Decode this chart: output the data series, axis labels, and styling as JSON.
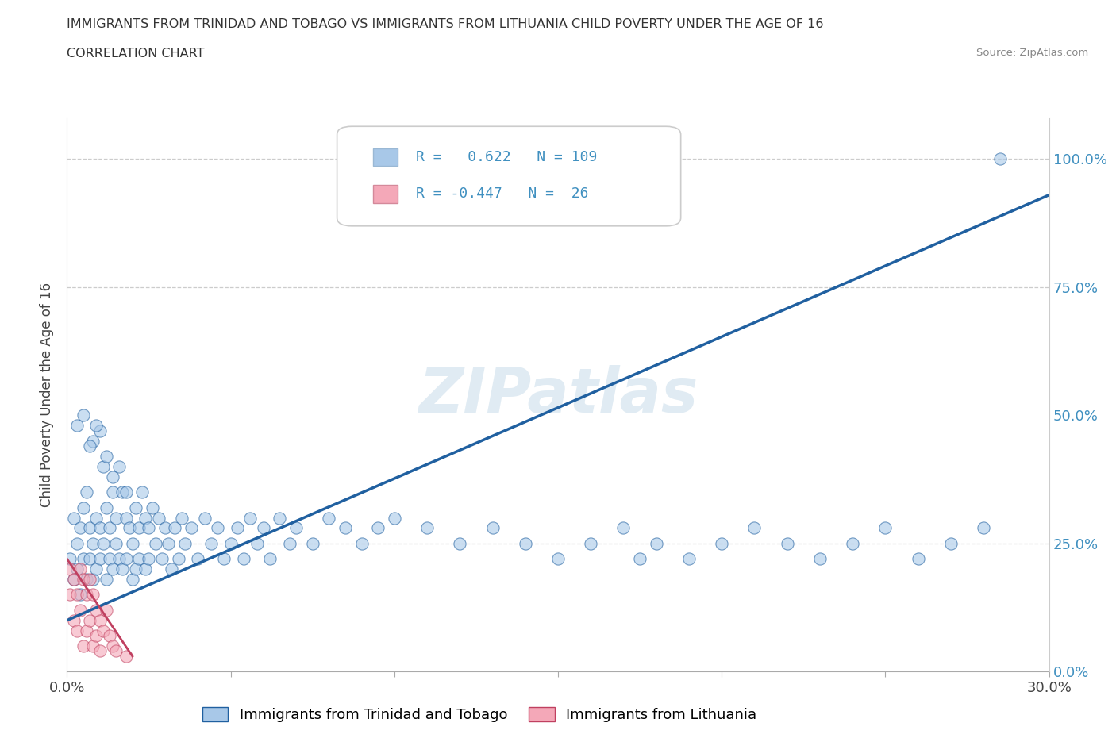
{
  "title": "IMMIGRANTS FROM TRINIDAD AND TOBAGO VS IMMIGRANTS FROM LITHUANIA CHILD POVERTY UNDER THE AGE OF 16",
  "subtitle": "CORRELATION CHART",
  "source": "Source: ZipAtlas.com",
  "ylabel": "Child Poverty Under the Age of 16",
  "legend_tt": "Immigrants from Trinidad and Tobago",
  "legend_lith": "Immigrants from Lithuania",
  "color_tt": "#a8c8e8",
  "color_lith": "#f4a8b8",
  "color_tt_line": "#2060a0",
  "color_lith_line": "#c04060",
  "R_tt": 0.622,
  "N_tt": 109,
  "R_lith": -0.447,
  "N_lith": 26,
  "xlim": [
    0.0,
    0.3
  ],
  "ylim": [
    0.0,
    1.08
  ],
  "yticks": [
    0.0,
    0.25,
    0.5,
    0.75,
    1.0
  ],
  "yticklabels_right": [
    "0.0%",
    "25.0%",
    "50.0%",
    "75.0%",
    "100.0%"
  ],
  "xtick_positions": [
    0.0,
    0.05,
    0.1,
    0.15,
    0.2,
    0.25,
    0.3
  ],
  "xtick_labels": [
    "0.0%",
    "",
    "",
    "",
    "",
    "",
    "30.0%"
  ],
  "watermark": "ZIPatlas",
  "background_color": "#ffffff",
  "tt_scatter": [
    [
      0.001,
      0.22
    ],
    [
      0.002,
      0.18
    ],
    [
      0.002,
      0.3
    ],
    [
      0.003,
      0.25
    ],
    [
      0.003,
      0.2
    ],
    [
      0.004,
      0.28
    ],
    [
      0.004,
      0.15
    ],
    [
      0.005,
      0.32
    ],
    [
      0.005,
      0.22
    ],
    [
      0.006,
      0.18
    ],
    [
      0.006,
      0.35
    ],
    [
      0.007,
      0.28
    ],
    [
      0.007,
      0.22
    ],
    [
      0.008,
      0.25
    ],
    [
      0.008,
      0.18
    ],
    [
      0.009,
      0.3
    ],
    [
      0.009,
      0.2
    ],
    [
      0.01,
      0.22
    ],
    [
      0.01,
      0.28
    ],
    [
      0.011,
      0.4
    ],
    [
      0.011,
      0.25
    ],
    [
      0.012,
      0.32
    ],
    [
      0.012,
      0.18
    ],
    [
      0.013,
      0.28
    ],
    [
      0.013,
      0.22
    ],
    [
      0.014,
      0.35
    ],
    [
      0.014,
      0.2
    ],
    [
      0.015,
      0.3
    ],
    [
      0.015,
      0.25
    ],
    [
      0.016,
      0.22
    ],
    [
      0.017,
      0.35
    ],
    [
      0.017,
      0.2
    ],
    [
      0.018,
      0.3
    ],
    [
      0.018,
      0.22
    ],
    [
      0.019,
      0.28
    ],
    [
      0.02,
      0.25
    ],
    [
      0.02,
      0.18
    ],
    [
      0.021,
      0.32
    ],
    [
      0.021,
      0.2
    ],
    [
      0.022,
      0.28
    ],
    [
      0.022,
      0.22
    ],
    [
      0.023,
      0.35
    ],
    [
      0.024,
      0.3
    ],
    [
      0.024,
      0.2
    ],
    [
      0.025,
      0.28
    ],
    [
      0.025,
      0.22
    ],
    [
      0.026,
      0.32
    ],
    [
      0.027,
      0.25
    ],
    [
      0.028,
      0.3
    ],
    [
      0.029,
      0.22
    ],
    [
      0.03,
      0.28
    ],
    [
      0.031,
      0.25
    ],
    [
      0.032,
      0.2
    ],
    [
      0.033,
      0.28
    ],
    [
      0.034,
      0.22
    ],
    [
      0.035,
      0.3
    ],
    [
      0.036,
      0.25
    ],
    [
      0.038,
      0.28
    ],
    [
      0.04,
      0.22
    ],
    [
      0.042,
      0.3
    ],
    [
      0.044,
      0.25
    ],
    [
      0.046,
      0.28
    ],
    [
      0.048,
      0.22
    ],
    [
      0.05,
      0.25
    ],
    [
      0.052,
      0.28
    ],
    [
      0.054,
      0.22
    ],
    [
      0.056,
      0.3
    ],
    [
      0.058,
      0.25
    ],
    [
      0.06,
      0.28
    ],
    [
      0.062,
      0.22
    ],
    [
      0.065,
      0.3
    ],
    [
      0.068,
      0.25
    ],
    [
      0.07,
      0.28
    ],
    [
      0.075,
      0.25
    ],
    [
      0.008,
      0.45
    ],
    [
      0.01,
      0.47
    ],
    [
      0.012,
      0.42
    ],
    [
      0.014,
      0.38
    ],
    [
      0.016,
      0.4
    ],
    [
      0.018,
      0.35
    ],
    [
      0.003,
      0.48
    ],
    [
      0.005,
      0.5
    ],
    [
      0.007,
      0.44
    ],
    [
      0.009,
      0.48
    ],
    [
      0.08,
      0.3
    ],
    [
      0.085,
      0.28
    ],
    [
      0.09,
      0.25
    ],
    [
      0.095,
      0.28
    ],
    [
      0.1,
      0.3
    ],
    [
      0.11,
      0.28
    ],
    [
      0.12,
      0.25
    ],
    [
      0.13,
      0.28
    ],
    [
      0.14,
      0.25
    ],
    [
      0.15,
      0.22
    ],
    [
      0.16,
      0.25
    ],
    [
      0.17,
      0.28
    ],
    [
      0.175,
      0.22
    ],
    [
      0.18,
      0.25
    ],
    [
      0.19,
      0.22
    ],
    [
      0.2,
      0.25
    ],
    [
      0.21,
      0.28
    ],
    [
      0.22,
      0.25
    ],
    [
      0.23,
      0.22
    ],
    [
      0.24,
      0.25
    ],
    [
      0.25,
      0.28
    ],
    [
      0.26,
      0.22
    ],
    [
      0.27,
      0.25
    ],
    [
      0.28,
      0.28
    ],
    [
      0.285,
      1.0
    ]
  ],
  "lith_scatter": [
    [
      0.001,
      0.2
    ],
    [
      0.001,
      0.15
    ],
    [
      0.002,
      0.18
    ],
    [
      0.002,
      0.1
    ],
    [
      0.003,
      0.15
    ],
    [
      0.003,
      0.08
    ],
    [
      0.004,
      0.2
    ],
    [
      0.004,
      0.12
    ],
    [
      0.005,
      0.18
    ],
    [
      0.005,
      0.05
    ],
    [
      0.006,
      0.15
    ],
    [
      0.006,
      0.08
    ],
    [
      0.007,
      0.18
    ],
    [
      0.007,
      0.1
    ],
    [
      0.008,
      0.15
    ],
    [
      0.008,
      0.05
    ],
    [
      0.009,
      0.12
    ],
    [
      0.009,
      0.07
    ],
    [
      0.01,
      0.1
    ],
    [
      0.01,
      0.04
    ],
    [
      0.011,
      0.08
    ],
    [
      0.012,
      0.12
    ],
    [
      0.013,
      0.07
    ],
    [
      0.014,
      0.05
    ],
    [
      0.015,
      0.04
    ],
    [
      0.018,
      0.03
    ]
  ],
  "tt_line_x": [
    0.0,
    0.3
  ],
  "tt_line_y": [
    0.1,
    0.93
  ],
  "lith_line_x": [
    0.0,
    0.02
  ],
  "lith_line_y": [
    0.22,
    0.03
  ]
}
